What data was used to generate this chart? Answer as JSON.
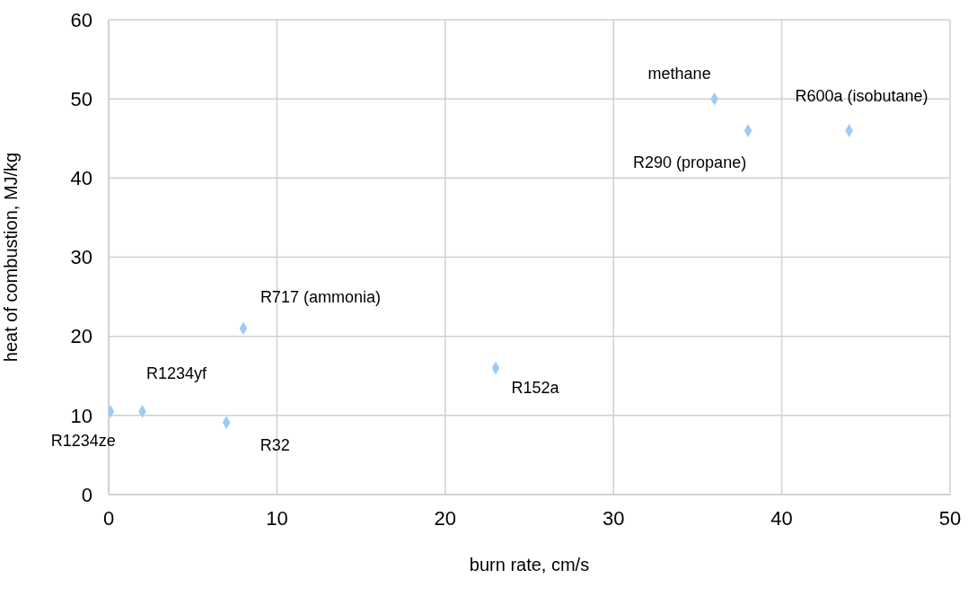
{
  "chart_data": {
    "type": "scatter",
    "xlabel": "burn rate, cm/s",
    "ylabel": "heat of combustion, MJ/kg",
    "x": [
      0.1,
      2,
      7,
      8,
      23,
      36,
      38,
      44
    ],
    "values": [
      10.5,
      10.5,
      9.1,
      21,
      16,
      50,
      46,
      46
    ],
    "color": "#9dcbf5",
    "marker": "diamond",
    "grid": true,
    "legend": false,
    "xlim": [
      0,
      50
    ],
    "xticks": [
      0,
      10,
      20,
      30,
      40,
      50
    ],
    "ylim": [
      0,
      60
    ],
    "yticks": [
      0,
      10,
      20,
      30,
      40,
      50,
      60
    ],
    "annotations": [
      {
        "text": "R1234ze",
        "x": 0.1,
        "y": 10.5
      },
      {
        "text": "R1234yf",
        "x": 2,
        "y": 10.5
      },
      {
        "text": "R32",
        "x": 7,
        "y": 9.1
      },
      {
        "text": "R717 (ammonia)",
        "x": 8,
        "y": 21
      },
      {
        "text": "R152a",
        "x": 23,
        "y": 16
      },
      {
        "text": "methane",
        "x": 36,
        "y": 50
      },
      {
        "text": "R290 (propane)",
        "x": 38,
        "y": 46
      },
      {
        "text": "R600a (isobutane)",
        "x": 44,
        "y": 46
      }
    ]
  }
}
